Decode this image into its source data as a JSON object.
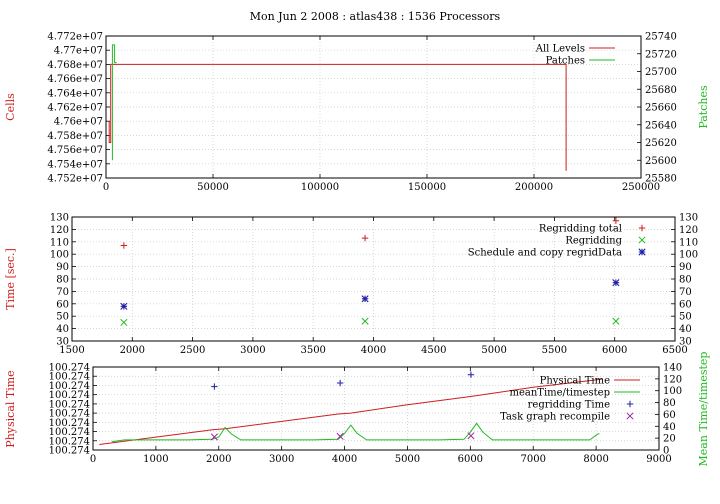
{
  "title": "Mon Jun 2 2008 : atlas438 : 1536 Processors",
  "colors": {
    "red": "#cc1f1f",
    "green": "#22bb22",
    "blue": "#1f1fa8",
    "magenta": "#a020a0"
  },
  "chart_data": [
    {
      "type": "line",
      "ylabel": "Cells",
      "y2label": "Patches",
      "xlim": [
        0,
        250000
      ],
      "ylim": [
        47520000,
        47720000
      ],
      "y2lim": [
        25580,
        25740
      ],
      "xticks": [
        "0",
        "50000",
        "100000",
        "150000",
        "200000",
        "250000"
      ],
      "yticks": [
        "4.752e+07",
        "4.754e+07",
        "4.756e+07",
        "4.758e+07",
        "4.76e+07",
        "4.762e+07",
        "4.764e+07",
        "4.766e+07",
        "4.768e+07",
        "4.77e+07",
        "4.772e+07"
      ],
      "y2ticks": [
        "25580",
        "25600",
        "25620",
        "25640",
        "25660",
        "25680",
        "25700",
        "25720",
        "25740"
      ],
      "grid": true,
      "legend_position": "top-right",
      "series": [
        {
          "name": "All Levels",
          "axis": "y",
          "color": "#cc1f1f",
          "x": [
            1500,
            1500,
            2200,
            2200,
            2600,
            2600,
            214000,
            214000,
            215000,
            215000
          ],
          "y": [
            47600000,
            47570000,
            47570000,
            47680000,
            47680000,
            47680000,
            47680000,
            47680000,
            47680000,
            47530000
          ]
        },
        {
          "name": "Patches",
          "axis": "y2",
          "color": "#22bb22",
          "x": [
            3000,
            3000,
            4000,
            4000,
            5000
          ],
          "y": [
            25600,
            25730,
            25730,
            25710,
            25710
          ]
        }
      ]
    },
    {
      "type": "scatter",
      "ylabel": "Time [sec.]",
      "xlim": [
        1500,
        6500
      ],
      "ylim": [
        30,
        130
      ],
      "y2lim": [
        30,
        130
      ],
      "xticks": [
        "1500",
        "2000",
        "2500",
        "3000",
        "3500",
        "4000",
        "4500",
        "5000",
        "5500",
        "6000",
        "6500"
      ],
      "yticks": [
        "30",
        "40",
        "50",
        "60",
        "70",
        "80",
        "90",
        "100",
        "110",
        "120",
        "130"
      ],
      "y2ticks": [
        "30",
        "40",
        "50",
        "60",
        "70",
        "80",
        "90",
        "100",
        "110",
        "120",
        "130"
      ],
      "grid": true,
      "legend_position": "top-right",
      "series": [
        {
          "name": "Regridding total",
          "marker": "+",
          "color": "#cc1f1f",
          "x": [
            1930,
            3930,
            6010
          ],
          "y": [
            107,
            113,
            127
          ]
        },
        {
          "name": "Regridding",
          "marker": "x",
          "color": "#22bb22",
          "x": [
            1930,
            3930,
            6010
          ],
          "y": [
            45,
            46,
            46
          ]
        },
        {
          "name": "Schedule and copy regridData",
          "marker": "*",
          "color": "#1f1fa8",
          "x": [
            1930,
            3930,
            6010
          ],
          "y": [
            58,
            64,
            77
          ]
        }
      ]
    },
    {
      "type": "line",
      "ylabel": "Physical Time",
      "y2label": "Mean Time/timestep",
      "xlim": [
        0,
        9000
      ],
      "ylim": [
        0,
        9
      ],
      "y2lim": [
        0,
        140
      ],
      "xticks": [
        "0",
        "1000",
        "2000",
        "3000",
        "4000",
        "5000",
        "6000",
        "7000",
        "8000",
        "9000"
      ],
      "yticks": [
        "100.274",
        "100.274",
        "100.274",
        "100.274",
        "100.274",
        "100.274",
        "100.274",
        "100.274",
        "100.274",
        "100.274"
      ],
      "y2ticks": [
        "0",
        "20",
        "40",
        "60",
        "80",
        "100",
        "120",
        "140"
      ],
      "grid": true,
      "legend_position": "top-right",
      "series": [
        {
          "name": "Physical Time",
          "axis": "y",
          "color": "#cc1f1f",
          "x": [
            100,
            1000,
            1900,
            2100,
            3000,
            3900,
            4100,
            5000,
            5900,
            6100,
            7000,
            8000,
            8100
          ],
          "y": [
            0.6,
            1.4,
            2.2,
            2.3,
            3.1,
            3.9,
            4.0,
            4.9,
            5.7,
            5.9,
            6.8,
            7.6,
            7.7
          ]
        },
        {
          "name": "meanTime/timestep",
          "axis": "y2",
          "color": "#22bb22",
          "x": [
            300,
            500,
            1000,
            1500,
            1900,
            2000,
            2100,
            2200,
            2350,
            2500,
            3000,
            3500,
            3900,
            4000,
            4100,
            4200,
            4350,
            4500,
            5000,
            5500,
            5900,
            6000,
            6100,
            6200,
            6350,
            6500,
            7000,
            7500,
            7900,
            8000,
            8050
          ],
          "y": [
            14,
            17,
            17,
            17,
            18,
            22,
            38,
            27,
            17,
            17,
            17,
            17,
            18,
            28,
            42,
            28,
            17,
            17,
            17,
            17,
            18,
            30,
            45,
            30,
            17,
            17,
            17,
            17,
            17,
            25,
            28
          ]
        },
        {
          "name": "regridding Time",
          "marker": "+",
          "axis": "y2",
          "color": "#1f1fa8",
          "x": [
            1930,
            3930,
            6010
          ],
          "y": [
            107,
            113,
            127
          ]
        },
        {
          "name": "Task graph recompile",
          "marker": "x",
          "axis": "y2",
          "color": "#a020a0",
          "x": [
            1930,
            3930,
            6010
          ],
          "y": [
            22,
            23,
            24
          ]
        }
      ]
    }
  ]
}
